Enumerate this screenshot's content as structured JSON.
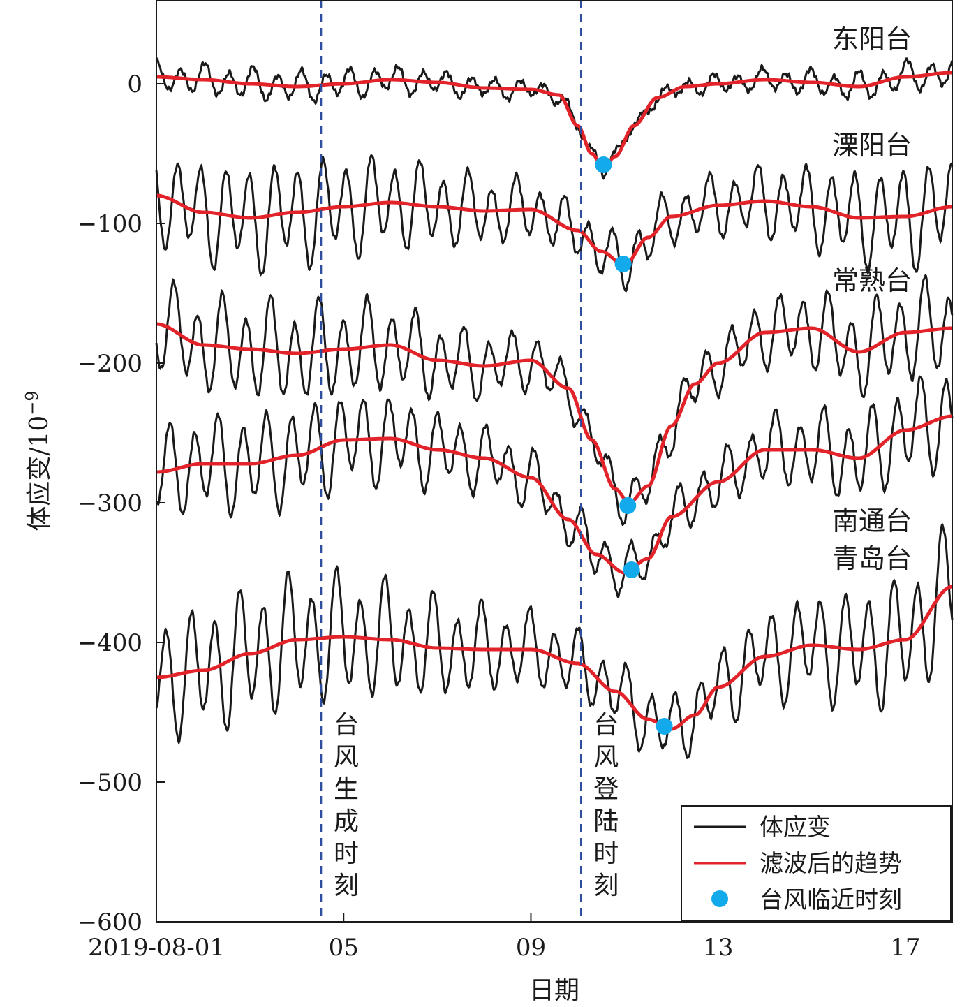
{
  "chart_data": {
    "type": "line",
    "xlabel": "日期",
    "ylabel": "体应变/10",
    "ylabel_exponent": "−9",
    "xlim": [
      0,
      17
    ],
    "ylim": [
      -600,
      60
    ],
    "x_ticks": [
      {
        "value": 0,
        "label": "2019-08-01"
      },
      {
        "value": 4,
        "label": "05"
      },
      {
        "value": 8,
        "label": "09"
      },
      {
        "value": 12,
        "label": "13"
      },
      {
        "value": 16,
        "label": "17"
      }
    ],
    "y_ticks": [
      {
        "value": 0,
        "label": "0"
      },
      {
        "value": -100,
        "label": "−100"
      },
      {
        "value": -200,
        "label": "−200"
      },
      {
        "value": -300,
        "label": "−300"
      },
      {
        "value": -400,
        "label": "−400"
      },
      {
        "value": -500,
        "label": "−500"
      },
      {
        "value": -600,
        "label": "−600"
      }
    ],
    "vlines": [
      {
        "x": 3.52,
        "label": [
          "台",
          "风",
          "生",
          "成",
          "时",
          "刻"
        ]
      },
      {
        "x": 9.07,
        "label": [
          "台",
          "风",
          "登",
          "陆",
          "时",
          "刻"
        ]
      }
    ],
    "station_labels": [
      {
        "text": "东阳台",
        "y": 32
      },
      {
        "text": "溧阳台",
        "y": -44
      },
      {
        "text": "常熟台",
        "y": -141
      },
      {
        "text": "南通台",
        "y": -313
      },
      {
        "text": "青岛台",
        "y": -340
      }
    ],
    "series": [
      {
        "name": "东阳台",
        "tide_amp": 12,
        "trend": [
          [
            0,
            5
          ],
          [
            1,
            3
          ],
          [
            2,
            0
          ],
          [
            3,
            -2
          ],
          [
            4,
            0
          ],
          [
            5,
            3
          ],
          [
            6,
            1
          ],
          [
            7,
            -3
          ],
          [
            8,
            -4
          ],
          [
            8.6,
            -8
          ],
          [
            9.0,
            -30
          ],
          [
            9.3,
            -50
          ],
          [
            9.55,
            -60
          ],
          [
            9.8,
            -52
          ],
          [
            10.2,
            -30
          ],
          [
            10.7,
            -10
          ],
          [
            11.3,
            -2
          ],
          [
            12,
            0
          ],
          [
            13,
            3
          ],
          [
            14,
            1
          ],
          [
            15,
            -2
          ],
          [
            16,
            5
          ],
          [
            17,
            8
          ]
        ],
        "typhoon_point": [
          9.55,
          -58
        ]
      },
      {
        "name": "溧阳台",
        "tide_amp": 40,
        "trend": [
          [
            0,
            -80
          ],
          [
            1,
            -92
          ],
          [
            2,
            -96
          ],
          [
            3,
            -92
          ],
          [
            4,
            -88
          ],
          [
            5,
            -85
          ],
          [
            6,
            -88
          ],
          [
            7,
            -91
          ],
          [
            8,
            -90
          ],
          [
            9,
            -105
          ],
          [
            9.5,
            -120
          ],
          [
            10,
            -130
          ],
          [
            10.5,
            -110
          ],
          [
            11,
            -95
          ],
          [
            12,
            -87
          ],
          [
            13,
            -84
          ],
          [
            14,
            -88
          ],
          [
            15,
            -96
          ],
          [
            16,
            -95
          ],
          [
            17,
            -88
          ]
        ],
        "typhoon_point": [
          9.97,
          -129
        ]
      },
      {
        "name": "常熟台",
        "tide_amp": 38,
        "trend": [
          [
            0,
            -172
          ],
          [
            1,
            -187
          ],
          [
            2,
            -190
          ],
          [
            3,
            -193
          ],
          [
            4,
            -190
          ],
          [
            5,
            -187
          ],
          [
            6,
            -198
          ],
          [
            7,
            -202
          ],
          [
            8,
            -198
          ],
          [
            8.8,
            -218
          ],
          [
            9.3,
            -255
          ],
          [
            9.8,
            -290
          ],
          [
            10.1,
            -300
          ],
          [
            10.5,
            -288
          ],
          [
            11,
            -245
          ],
          [
            11.5,
            -215
          ],
          [
            12,
            -200
          ],
          [
            13,
            -178
          ],
          [
            14,
            -175
          ],
          [
            15,
            -192
          ],
          [
            16,
            -178
          ],
          [
            17,
            -175
          ]
        ],
        "typhoon_point": [
          10.07,
          -302
        ]
      },
      {
        "name": "南通台",
        "tide_amp": 38,
        "trend": [
          [
            0,
            -278
          ],
          [
            1,
            -272
          ],
          [
            2,
            -272
          ],
          [
            3,
            -266
          ],
          [
            4,
            -255
          ],
          [
            5,
            -254
          ],
          [
            6,
            -262
          ],
          [
            7,
            -268
          ],
          [
            8,
            -282
          ],
          [
            8.8,
            -312
          ],
          [
            9.4,
            -337
          ],
          [
            10,
            -350
          ],
          [
            10.5,
            -340
          ],
          [
            11,
            -310
          ],
          [
            12,
            -285
          ],
          [
            13,
            -262
          ],
          [
            14,
            -262
          ],
          [
            15,
            -268
          ],
          [
            16,
            -248
          ],
          [
            17,
            -238
          ]
        ],
        "typhoon_point": [
          10.15,
          -348
        ]
      },
      {
        "name": "青岛台",
        "tide_amp": 50,
        "trend": [
          [
            0,
            -425
          ],
          [
            1,
            -420
          ],
          [
            2,
            -408
          ],
          [
            3,
            -398
          ],
          [
            4,
            -396
          ],
          [
            5,
            -398
          ],
          [
            6,
            -404
          ],
          [
            7,
            -405
          ],
          [
            8,
            -405
          ],
          [
            9,
            -415
          ],
          [
            9.8,
            -435
          ],
          [
            10.5,
            -455
          ],
          [
            11,
            -462
          ],
          [
            11.5,
            -452
          ],
          [
            12,
            -432
          ],
          [
            13,
            -410
          ],
          [
            14,
            -402
          ],
          [
            15,
            -405
          ],
          [
            16,
            -398
          ],
          [
            17,
            -360
          ]
        ],
        "typhoon_point": [
          10.85,
          -460
        ]
      }
    ],
    "legend": {
      "placement": "bottom-right",
      "items": [
        {
          "label": "体应变",
          "kind": "line",
          "color": "#1a1a1a"
        },
        {
          "label": "滤波后的趋势",
          "kind": "line",
          "color": "#e3232a"
        },
        {
          "label": "台风临近时刻",
          "kind": "marker",
          "color": "#12aaea"
        }
      ]
    },
    "colors": {
      "raw": "#1a1a1a",
      "trend": "#e3232a",
      "marker": "#12aaea",
      "vline": "#2f4f9e"
    }
  }
}
